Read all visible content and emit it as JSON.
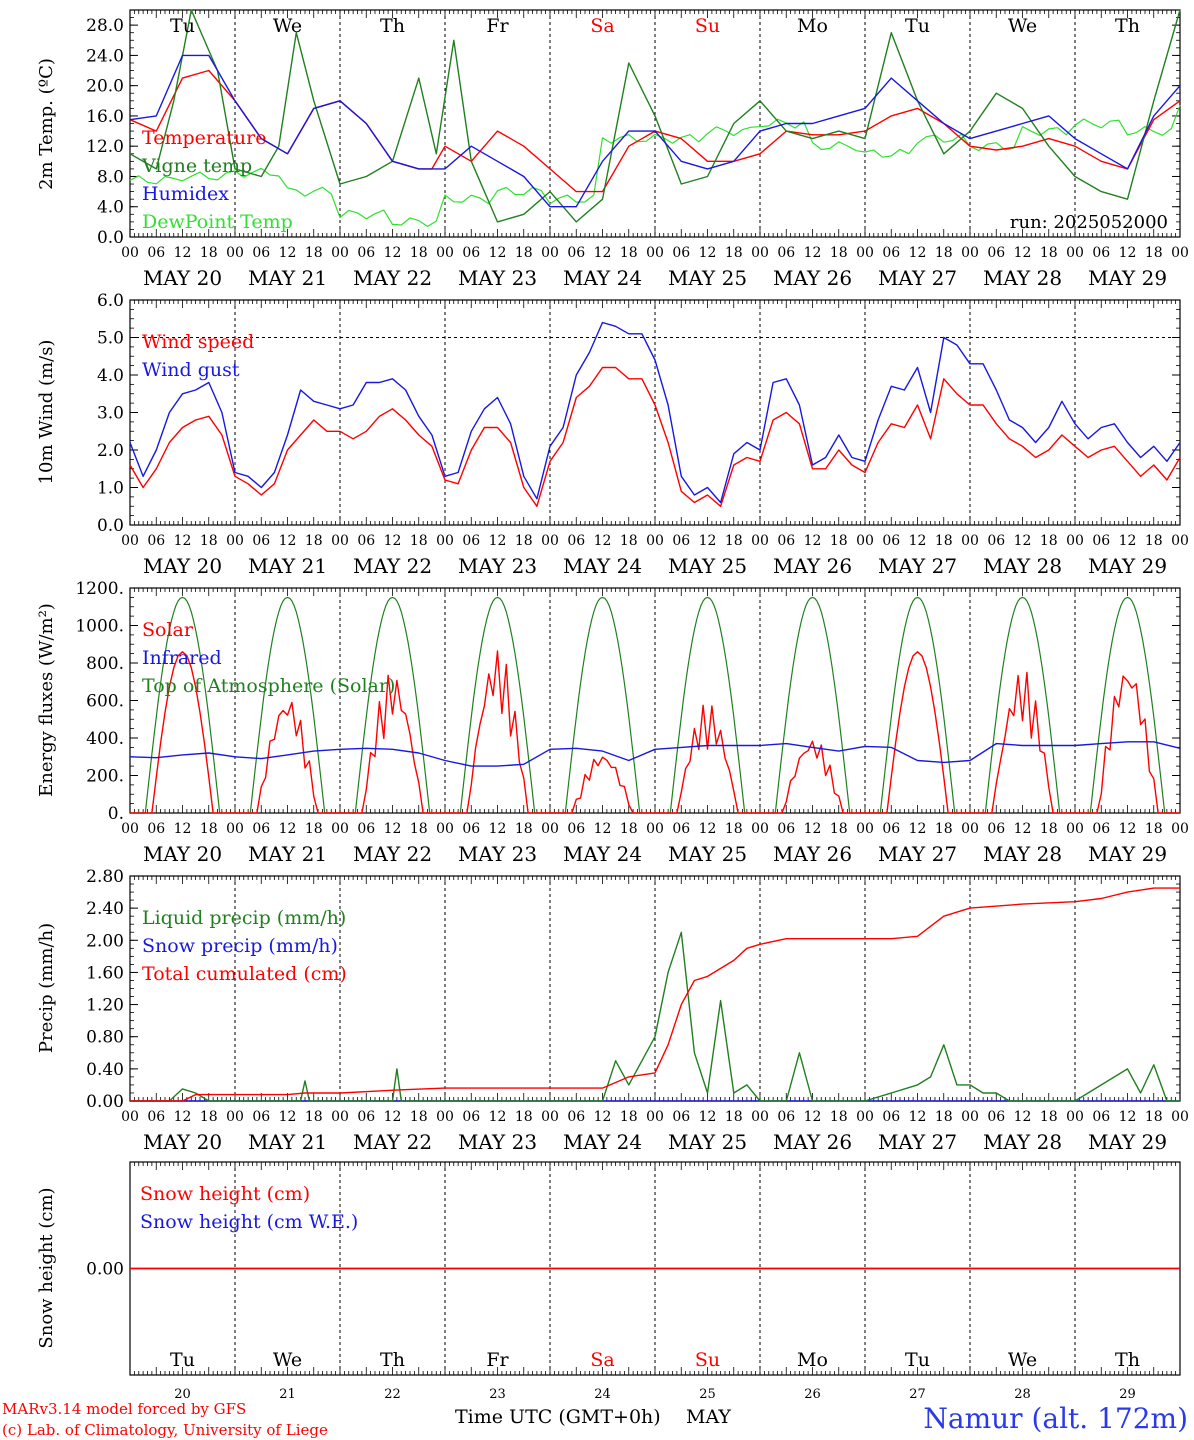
{
  "colors": {
    "red": "#ff0000",
    "green": "#208020",
    "blue": "#1818e0",
    "lightgreen": "#30e030",
    "footer_blue": "#2a3ae8"
  },
  "days": {
    "weekday": [
      "Tu",
      "We",
      "Th",
      "Fr",
      "Sa",
      "Su",
      "Mo",
      "Tu",
      "We",
      "Th"
    ],
    "weekday_red": [
      false,
      false,
      false,
      false,
      true,
      true,
      false,
      false,
      false,
      false
    ],
    "date": [
      "MAY 20",
      "MAY 21",
      "MAY 22",
      "MAY 23",
      "MAY 24",
      "MAY 25",
      "MAY 26",
      "MAY 27",
      "MAY 28",
      "MAY 29"
    ],
    "daynum": [
      "20",
      "21",
      "22",
      "23",
      "24",
      "25",
      "26",
      "27",
      "28",
      "29"
    ],
    "hours": [
      "00",
      "06",
      "12",
      "18"
    ],
    "final_hour": "00"
  },
  "footer": {
    "model": "MARv3.14 model forced by GFS",
    "lab": "(c) Lab. of Climatology, University of Liege",
    "xlabel": "Time UTC (GMT+0h)",
    "month": "MAY",
    "station": "Namur (alt. 172m)"
  },
  "chart_data": [
    {
      "type": "line",
      "ylabel": "2m Temp. (ºC)",
      "ylim": [
        0,
        30
      ],
      "yticks": [
        "0.0",
        "4.0",
        "8.0",
        "12.0",
        "16.0",
        "20.0",
        "24.0",
        "28.0"
      ],
      "run": "run: 2025052000",
      "x_unit": "hours since 00 UTC MAY 20",
      "series": [
        {
          "name": "Temperature",
          "color": "red",
          "x": [
            0,
            6,
            12,
            18,
            24,
            30,
            36,
            42,
            48,
            54,
            60,
            63,
            66,
            69,
            72,
            78,
            84,
            90,
            96,
            102,
            108,
            114,
            120,
            126,
            132,
            138,
            144,
            150,
            156,
            162,
            168,
            174,
            180,
            186,
            192,
            198,
            204,
            210,
            216,
            222,
            228,
            234,
            240
          ],
          "y": [
            15.5,
            14,
            21,
            22,
            18,
            13,
            11,
            17,
            18,
            15,
            10,
            9.5,
            9,
            9,
            12,
            10,
            14,
            12,
            9,
            6,
            6,
            12,
            14,
            13,
            10,
            10,
            11,
            14,
            13.5,
            13.5,
            14,
            16,
            17,
            15,
            12,
            11.5,
            12,
            13,
            12,
            10,
            9,
            15.5,
            18
          ]
        },
        {
          "name": "Vigne temp",
          "color": "green",
          "x": [
            0,
            6,
            10,
            14,
            20,
            24,
            30,
            34,
            38,
            42,
            48,
            54,
            60,
            66,
            70,
            74,
            78,
            84,
            90,
            96,
            102,
            108,
            114,
            120,
            126,
            132,
            138,
            144,
            150,
            156,
            162,
            168,
            174,
            180,
            186,
            192,
            198,
            204,
            210,
            216,
            222,
            228,
            234,
            240
          ],
          "y": [
            11,
            9,
            18,
            30,
            22,
            9,
            8,
            12,
            27,
            18,
            7,
            8,
            10,
            21,
            11,
            26,
            10,
            2,
            3,
            6,
            2,
            5,
            23,
            16,
            7,
            8,
            15,
            18,
            14,
            13,
            14,
            13,
            27,
            18,
            11,
            14,
            19,
            17,
            12,
            8,
            6,
            5,
            18,
            30
          ]
        },
        {
          "name": "Humidex",
          "color": "blue",
          "x": [
            0,
            6,
            12,
            18,
            24,
            30,
            36,
            42,
            48,
            54,
            60,
            66,
            72,
            78,
            84,
            90,
            96,
            102,
            108,
            114,
            120,
            126,
            132,
            138,
            144,
            150,
            156,
            162,
            168,
            174,
            180,
            186,
            192,
            198,
            204,
            210,
            216,
            222,
            228,
            234,
            240
          ],
          "y": [
            15.5,
            16,
            24,
            24,
            18,
            13,
            11,
            17,
            18,
            15,
            10,
            9,
            9,
            12,
            10,
            8,
            4,
            4,
            10,
            14,
            14,
            10,
            9,
            10,
            14,
            15,
            15,
            16,
            17,
            21,
            18,
            15,
            13,
            14,
            15,
            16,
            13,
            11,
            9,
            16,
            20
          ]
        }
      ]
    },
    {
      "type": "line",
      "ylabel": "10m Wind (m/s)",
      "ylim": [
        0,
        6
      ],
      "yticks": [
        "0.0",
        "1.0",
        "2.0",
        "3.0",
        "4.0",
        "5.0",
        "6.0"
      ],
      "ref_line": 5,
      "series": [
        {
          "name": "Wind speed",
          "color": "red",
          "x": [
            0,
            3,
            6,
            9,
            12,
            15,
            18,
            21,
            24,
            27,
            30,
            33,
            36,
            39,
            42,
            45,
            48,
            51,
            54,
            57,
            60,
            63,
            66,
            69,
            72,
            75,
            78,
            81,
            84,
            87,
            90,
            93,
            96,
            99,
            102,
            105,
            108,
            111,
            114,
            117,
            120,
            123,
            126,
            129,
            132,
            135,
            138,
            141,
            144,
            147,
            150,
            153,
            156,
            159,
            162,
            165,
            168,
            171,
            174,
            177,
            180,
            183,
            186,
            189,
            192,
            195,
            198,
            201,
            204,
            207,
            210,
            213,
            216,
            219,
            222,
            225,
            228,
            231,
            234,
            237,
            240
          ],
          "y": [
            1.6,
            1,
            1.5,
            2.2,
            2.6,
            2.8,
            2.9,
            2.4,
            1.3,
            1.1,
            0.8,
            1.1,
            2,
            2.4,
            2.8,
            2.5,
            2.5,
            2.3,
            2.5,
            2.9,
            3.1,
            2.8,
            2.4,
            2.1,
            1.2,
            1.1,
            2,
            2.6,
            2.6,
            2.2,
            1,
            0.5,
            1.7,
            2.2,
            3.4,
            3.7,
            4.2,
            4.2,
            3.9,
            3.9,
            3.2,
            2.2,
            0.9,
            0.6,
            0.8,
            0.5,
            1.6,
            1.8,
            1.7,
            2.8,
            3,
            2.7,
            1.5,
            1.5,
            2,
            1.6,
            1.4,
            2.2,
            2.7,
            2.6,
            3.2,
            2.3,
            3.9,
            3.5,
            3.2,
            3.2,
            2.7,
            2.3,
            2.1,
            1.8,
            2,
            2.4,
            2.1,
            1.8,
            2,
            2.1,
            1.7,
            1.3,
            1.6,
            1.2,
            1.8
          ]
        },
        {
          "name": "Wind gust",
          "color": "blue",
          "x": [
            0,
            3,
            6,
            9,
            12,
            15,
            18,
            21,
            24,
            27,
            30,
            33,
            36,
            39,
            42,
            45,
            48,
            51,
            54,
            57,
            60,
            63,
            66,
            69,
            72,
            75,
            78,
            81,
            84,
            87,
            90,
            93,
            96,
            99,
            102,
            105,
            108,
            111,
            114,
            117,
            120,
            123,
            126,
            129,
            132,
            135,
            138,
            141,
            144,
            147,
            150,
            153,
            156,
            159,
            162,
            165,
            168,
            171,
            174,
            177,
            180,
            183,
            186,
            189,
            192,
            195,
            198,
            201,
            204,
            207,
            210,
            213,
            216,
            219,
            222,
            225,
            228,
            231,
            234,
            237,
            240
          ],
          "y": [
            2.2,
            1.3,
            2,
            3,
            3.5,
            3.6,
            3.8,
            3,
            1.4,
            1.3,
            1,
            1.4,
            2.4,
            3.6,
            3.3,
            3.2,
            3.1,
            3.2,
            3.8,
            3.8,
            3.9,
            3.6,
            2.9,
            2.4,
            1.3,
            1.4,
            2.5,
            3.1,
            3.4,
            2.7,
            1.3,
            0.7,
            2.1,
            2.6,
            4,
            4.6,
            5.4,
            5.3,
            5.1,
            5.1,
            4.4,
            3.2,
            1.3,
            0.8,
            1,
            0.6,
            1.9,
            2.2,
            2,
            3.8,
            3.9,
            3.2,
            1.6,
            1.8,
            2.4,
            1.8,
            1.7,
            2.8,
            3.7,
            3.6,
            4.2,
            3,
            5,
            4.8,
            4.3,
            4.3,
            3.6,
            2.8,
            2.6,
            2.2,
            2.6,
            3.3,
            2.7,
            2.3,
            2.6,
            2.7,
            2.2,
            1.8,
            2.1,
            1.7,
            2.2
          ]
        }
      ]
    },
    {
      "type": "line",
      "ylabel": "Energy fluxes (W/m²)",
      "ylim": [
        0,
        1200
      ],
      "yticks": [
        "0.",
        "200.",
        "400.",
        "600.",
        "800.",
        "1000.",
        "1200."
      ],
      "series": [
        {
          "name": "Solar",
          "color": "red",
          "daily_peak": [
            860,
            640,
            760,
            880,
            330,
            590,
            410,
            860,
            770,
            820
          ]
        },
        {
          "name": "Infrared",
          "color": "blue",
          "x": [
            0,
            6,
            12,
            18,
            24,
            30,
            36,
            42,
            48,
            54,
            60,
            66,
            72,
            78,
            84,
            90,
            96,
            102,
            108,
            114,
            120,
            126,
            132,
            138,
            144,
            150,
            156,
            162,
            168,
            174,
            180,
            186,
            192,
            198,
            204,
            210,
            216,
            222,
            228,
            234,
            240
          ],
          "y": [
            300,
            295,
            310,
            320,
            300,
            290,
            310,
            330,
            340,
            345,
            340,
            320,
            280,
            250,
            250,
            260,
            340,
            345,
            330,
            280,
            340,
            350,
            360,
            360,
            360,
            370,
            350,
            330,
            355,
            350,
            280,
            270,
            280,
            370,
            360,
            360,
            360,
            370,
            380,
            380,
            345
          ]
        },
        {
          "name": "Top of Atmosphere (Solar)",
          "color": "green",
          "peak": 1150
        }
      ]
    },
    {
      "type": "line",
      "ylabel": "Precip (mm/h)",
      "ylim": [
        0,
        2.8
      ],
      "yticks": [
        "0.00",
        "0.40",
        "0.80",
        "1.20",
        "1.60",
        "2.00",
        "2.40",
        "2.80"
      ],
      "series": [
        {
          "name": "Liquid precip (mm/h)",
          "color": "green",
          "x": [
            0,
            9,
            12,
            15,
            18,
            24,
            39,
            40,
            41,
            48,
            60,
            61,
            62,
            72,
            96,
            108,
            111,
            114,
            117,
            120,
            123,
            126,
            129,
            132,
            135,
            138,
            141,
            144,
            147,
            150,
            153,
            156,
            162,
            168,
            174,
            180,
            183,
            186,
            189,
            192,
            195,
            198,
            201,
            204,
            210,
            216,
            222,
            228,
            231,
            234,
            237,
            240
          ],
          "y": [
            0,
            0,
            0.15,
            0.1,
            0,
            0,
            0,
            0.25,
            0,
            0,
            0,
            0.4,
            0,
            0,
            0,
            0,
            0.5,
            0.2,
            0.5,
            0.8,
            1.6,
            2.1,
            0.6,
            0.1,
            1.25,
            0.1,
            0.2,
            0,
            0,
            0,
            0.6,
            0,
            0,
            0,
            0.1,
            0.2,
            0.3,
            0.7,
            0.2,
            0.2,
            0.1,
            0.1,
            0,
            0,
            0,
            0,
            0.2,
            0.4,
            0.1,
            0.45,
            0,
            0
          ]
        },
        {
          "name": "Snow precip (mm/h)",
          "color": "blue",
          "x": [
            0,
            240
          ],
          "y": [
            0,
            0
          ]
        },
        {
          "name": "Total cumulated (cm)",
          "color": "red",
          "x": [
            0,
            12,
            15,
            36,
            40,
            48,
            62,
            72,
            96,
            108,
            114,
            120,
            123,
            126,
            129,
            132,
            138,
            141,
            144,
            150,
            162,
            174,
            180,
            186,
            192,
            204,
            216,
            222,
            228,
            234,
            240
          ],
          "y": [
            0,
            0,
            0.08,
            0.08,
            0.1,
            0.1,
            0.14,
            0.16,
            0.16,
            0.16,
            0.3,
            0.35,
            0.7,
            1.2,
            1.5,
            1.55,
            1.75,
            1.9,
            1.95,
            2.02,
            2.02,
            2.02,
            2.05,
            2.3,
            2.4,
            2.45,
            2.48,
            2.52,
            2.6,
            2.65,
            2.65
          ]
        }
      ]
    },
    {
      "type": "line",
      "ylabel": "Snow height (cm)",
      "yticks": [
        "0.00"
      ],
      "series": [
        {
          "name": "Snow height (cm)",
          "color": "red",
          "x": [
            0,
            240
          ],
          "y": [
            0,
            0
          ]
        },
        {
          "name": "Snow height (cm W.E.)",
          "color": "blue",
          "x": [
            0,
            240
          ],
          "y": [
            0,
            0
          ]
        }
      ]
    }
  ]
}
